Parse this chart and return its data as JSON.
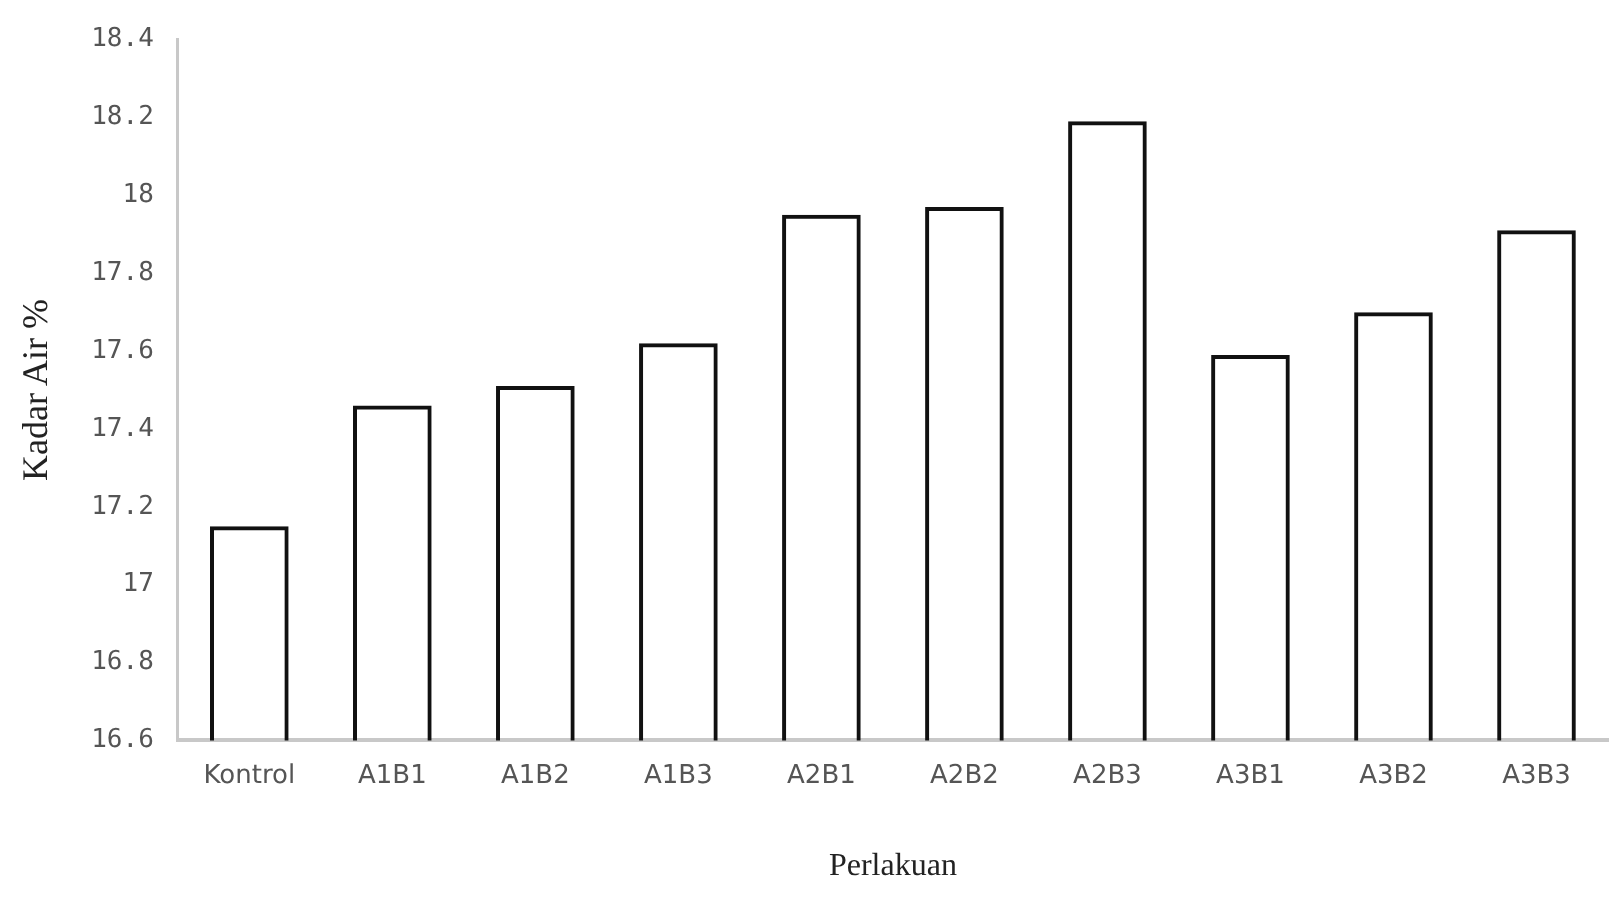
{
  "chart_data": {
    "type": "bar",
    "xlabel": "Perlakuan",
    "ylabel": "Kadar Air %",
    "categories": [
      "Kontrol",
      "A1B1",
      "A1B2",
      "A1B3",
      "A2B1",
      "A2B2",
      "A2B3",
      "A3B1",
      "A3B2",
      "A3B3"
    ],
    "series": [
      {
        "color": "#111111",
        "values": [
          17.15,
          17.46,
          17.51,
          17.62,
          17.95,
          17.97,
          18.19,
          17.59,
          17.7,
          17.91
        ]
      }
    ],
    "ylim": [
      16.6,
      18.4
    ],
    "yticks": [
      16.6,
      16.8,
      17,
      17.2,
      17.4,
      17.6,
      17.8,
      18,
      18.2,
      18.4
    ],
    "grid": false,
    "legend": false
  }
}
